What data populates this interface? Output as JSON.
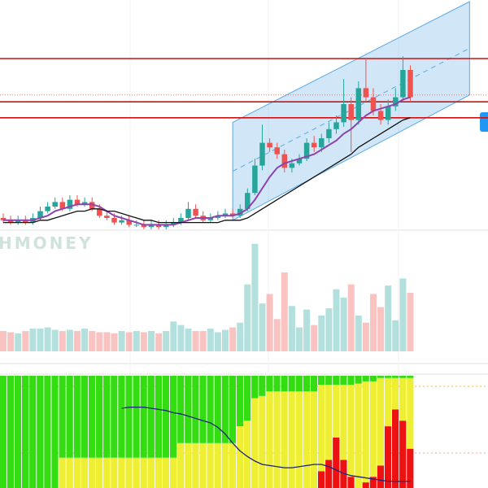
{
  "chart_data": [
    {
      "type": "candlestick",
      "ylim": [
        0,
        100
      ],
      "up_color": "#26a69a",
      "down_color": "#ef5350",
      "open": [
        5,
        4,
        3,
        4,
        3,
        5,
        8,
        10,
        12,
        9,
        13,
        11,
        12,
        9,
        6,
        5,
        3,
        4,
        2,
        2,
        1,
        2,
        1,
        2,
        3,
        5,
        9,
        6,
        4,
        5,
        6,
        7,
        6,
        9,
        16,
        28,
        38,
        36,
        33,
        27,
        29,
        31,
        38,
        36,
        40,
        44,
        47,
        55,
        48,
        62,
        58,
        52,
        48,
        54,
        58,
        70
      ],
      "high": [
        7,
        6,
        6,
        6,
        7,
        10,
        12,
        14,
        14,
        15,
        15,
        14,
        14,
        11,
        8,
        7,
        6,
        6,
        4,
        4,
        4,
        4,
        4,
        5,
        7,
        12,
        11,
        8,
        7,
        8,
        9,
        9,
        11,
        18,
        31,
        46,
        40,
        38,
        35,
        31,
        33,
        40,
        41,
        42,
        47,
        50,
        66,
        58,
        65,
        75,
        62,
        55,
        57,
        62,
        76,
        72
      ],
      "low": [
        3,
        2,
        2,
        2,
        2,
        4,
        7,
        9,
        8,
        8,
        10,
        10,
        8,
        5,
        4,
        2,
        2,
        1,
        1,
        0,
        0,
        0,
        0,
        1,
        2,
        4,
        5,
        3,
        3,
        4,
        5,
        5,
        5,
        8,
        15,
        26,
        34,
        31,
        25,
        25,
        28,
        30,
        34,
        34,
        38,
        42,
        45,
        34,
        46,
        56,
        50,
        46,
        46,
        52,
        56,
        56
      ],
      "close": [
        4,
        3,
        4,
        3,
        5,
        8,
        10,
        12,
        9,
        13,
        11,
        12,
        9,
        6,
        5,
        3,
        4,
        2,
        2,
        1,
        2,
        1,
        2,
        3,
        5,
        9,
        6,
        4,
        5,
        6,
        7,
        6,
        9,
        16,
        28,
        38,
        36,
        33,
        27,
        29,
        31,
        38,
        36,
        40,
        44,
        47,
        55,
        48,
        62,
        58,
        52,
        48,
        54,
        58,
        70,
        58
      ],
      "levels": [
        75,
        56,
        49
      ],
      "level_color": "#cc1111",
      "dotted_level": 59,
      "channel": {
        "start": 31,
        "end": 63,
        "top": [
          47,
          100
        ],
        "bottom": [
          4,
          59
        ],
        "color": "#5aa9e6"
      },
      "series": [
        {
          "color": "#8e44ad",
          "values": [
            4,
            4,
            4,
            4,
            4,
            5,
            6,
            8,
            9,
            10,
            11,
            11,
            11,
            10,
            8,
            6,
            5,
            4,
            3,
            2,
            2,
            2,
            2,
            2,
            3,
            4,
            5,
            5,
            5,
            6,
            6,
            6,
            7,
            9,
            13,
            18,
            23,
            27,
            29,
            30,
            31,
            32,
            33,
            35,
            37,
            39,
            42,
            44,
            47,
            50,
            52,
            53,
            54,
            55,
            57,
            58
          ]
        },
        {
          "color": "#111111",
          "values": [
            3,
            3,
            3,
            3,
            3,
            4,
            4,
            5,
            6,
            7,
            8,
            8,
            9,
            9,
            8,
            8,
            7,
            6,
            5,
            4,
            4,
            3,
            3,
            3,
            3,
            3,
            3,
            3,
            3,
            3,
            4,
            4,
            4,
            5,
            7,
            9,
            11,
            13,
            15,
            17,
            19,
            21,
            23,
            25,
            27,
            29,
            31,
            33,
            36,
            38,
            40,
            42,
            44,
            46,
            48,
            49
          ]
        }
      ]
    },
    {
      "type": "bar",
      "watermark": "HMONEY",
      "ylim": [
        0,
        100
      ],
      "values": [
        17,
        16,
        15,
        17,
        19,
        19,
        20,
        18,
        17,
        18,
        17,
        19,
        17,
        16,
        16,
        15,
        17,
        16,
        17,
        16,
        17,
        15,
        17,
        25,
        22,
        19,
        17,
        17,
        19,
        16,
        18,
        20,
        24,
        56,
        90,
        40,
        48,
        27,
        66,
        38,
        20,
        35,
        22,
        30,
        36,
        52,
        45,
        56,
        30,
        24,
        48,
        37,
        55,
        26,
        61,
        49
      ]
    },
    {
      "type": "stacked_bar",
      "ylim": [
        0,
        100
      ],
      "series": [
        {
          "color": "#ee1111",
          "values": [
            0,
            0,
            0,
            0,
            0,
            0,
            0,
            0,
            0,
            0,
            0,
            0,
            0,
            0,
            0,
            0,
            0,
            0,
            0,
            0,
            0,
            0,
            0,
            0,
            0,
            0,
            0,
            0,
            0,
            0,
            0,
            0,
            0,
            0,
            0,
            0,
            0,
            0,
            0,
            0,
            0,
            0,
            0,
            15,
            25,
            45,
            25,
            10,
            0,
            5,
            10,
            20,
            55,
            70,
            60,
            35
          ]
        },
        {
          "color": "#eeee33",
          "values": [
            0,
            0,
            0,
            0,
            0,
            0,
            0,
            0,
            27,
            27,
            27,
            27,
            27,
            27,
            27,
            27,
            27,
            27,
            27,
            27,
            27,
            27,
            27,
            27,
            40,
            40,
            40,
            40,
            40,
            40,
            40,
            40,
            55,
            60,
            80,
            82,
            86,
            86,
            86,
            86,
            86,
            86,
            86,
            77,
            67,
            47,
            67,
            82,
            93,
            90,
            85,
            78,
            43,
            28,
            38,
            63
          ]
        },
        {
          "color": "#33dd11",
          "values": [
            100,
            100,
            100,
            100,
            100,
            100,
            100,
            100,
            73,
            73,
            73,
            73,
            73,
            73,
            73,
            73,
            73,
            73,
            73,
            73,
            73,
            73,
            73,
            73,
            60,
            60,
            60,
            60,
            60,
            60,
            60,
            60,
            45,
            40,
            20,
            18,
            14,
            14,
            14,
            14,
            14,
            14,
            14,
            8,
            8,
            8,
            8,
            8,
            7,
            5,
            5,
            2,
            2,
            2,
            2,
            2
          ]
        }
      ],
      "line": {
        "color": "#1a237e",
        "values": [
          null,
          null,
          null,
          null,
          null,
          null,
          null,
          null,
          null,
          null,
          null,
          null,
          null,
          null,
          null,
          null,
          71,
          72,
          72,
          72,
          71,
          70,
          69,
          67,
          66,
          64,
          62,
          60,
          58,
          54,
          48,
          40,
          33,
          28,
          24,
          21,
          20,
          19,
          18,
          18,
          19,
          20,
          21,
          21,
          19,
          16,
          13,
          11,
          10,
          9,
          8,
          7,
          6,
          6,
          6,
          6
        ]
      }
    }
  ]
}
